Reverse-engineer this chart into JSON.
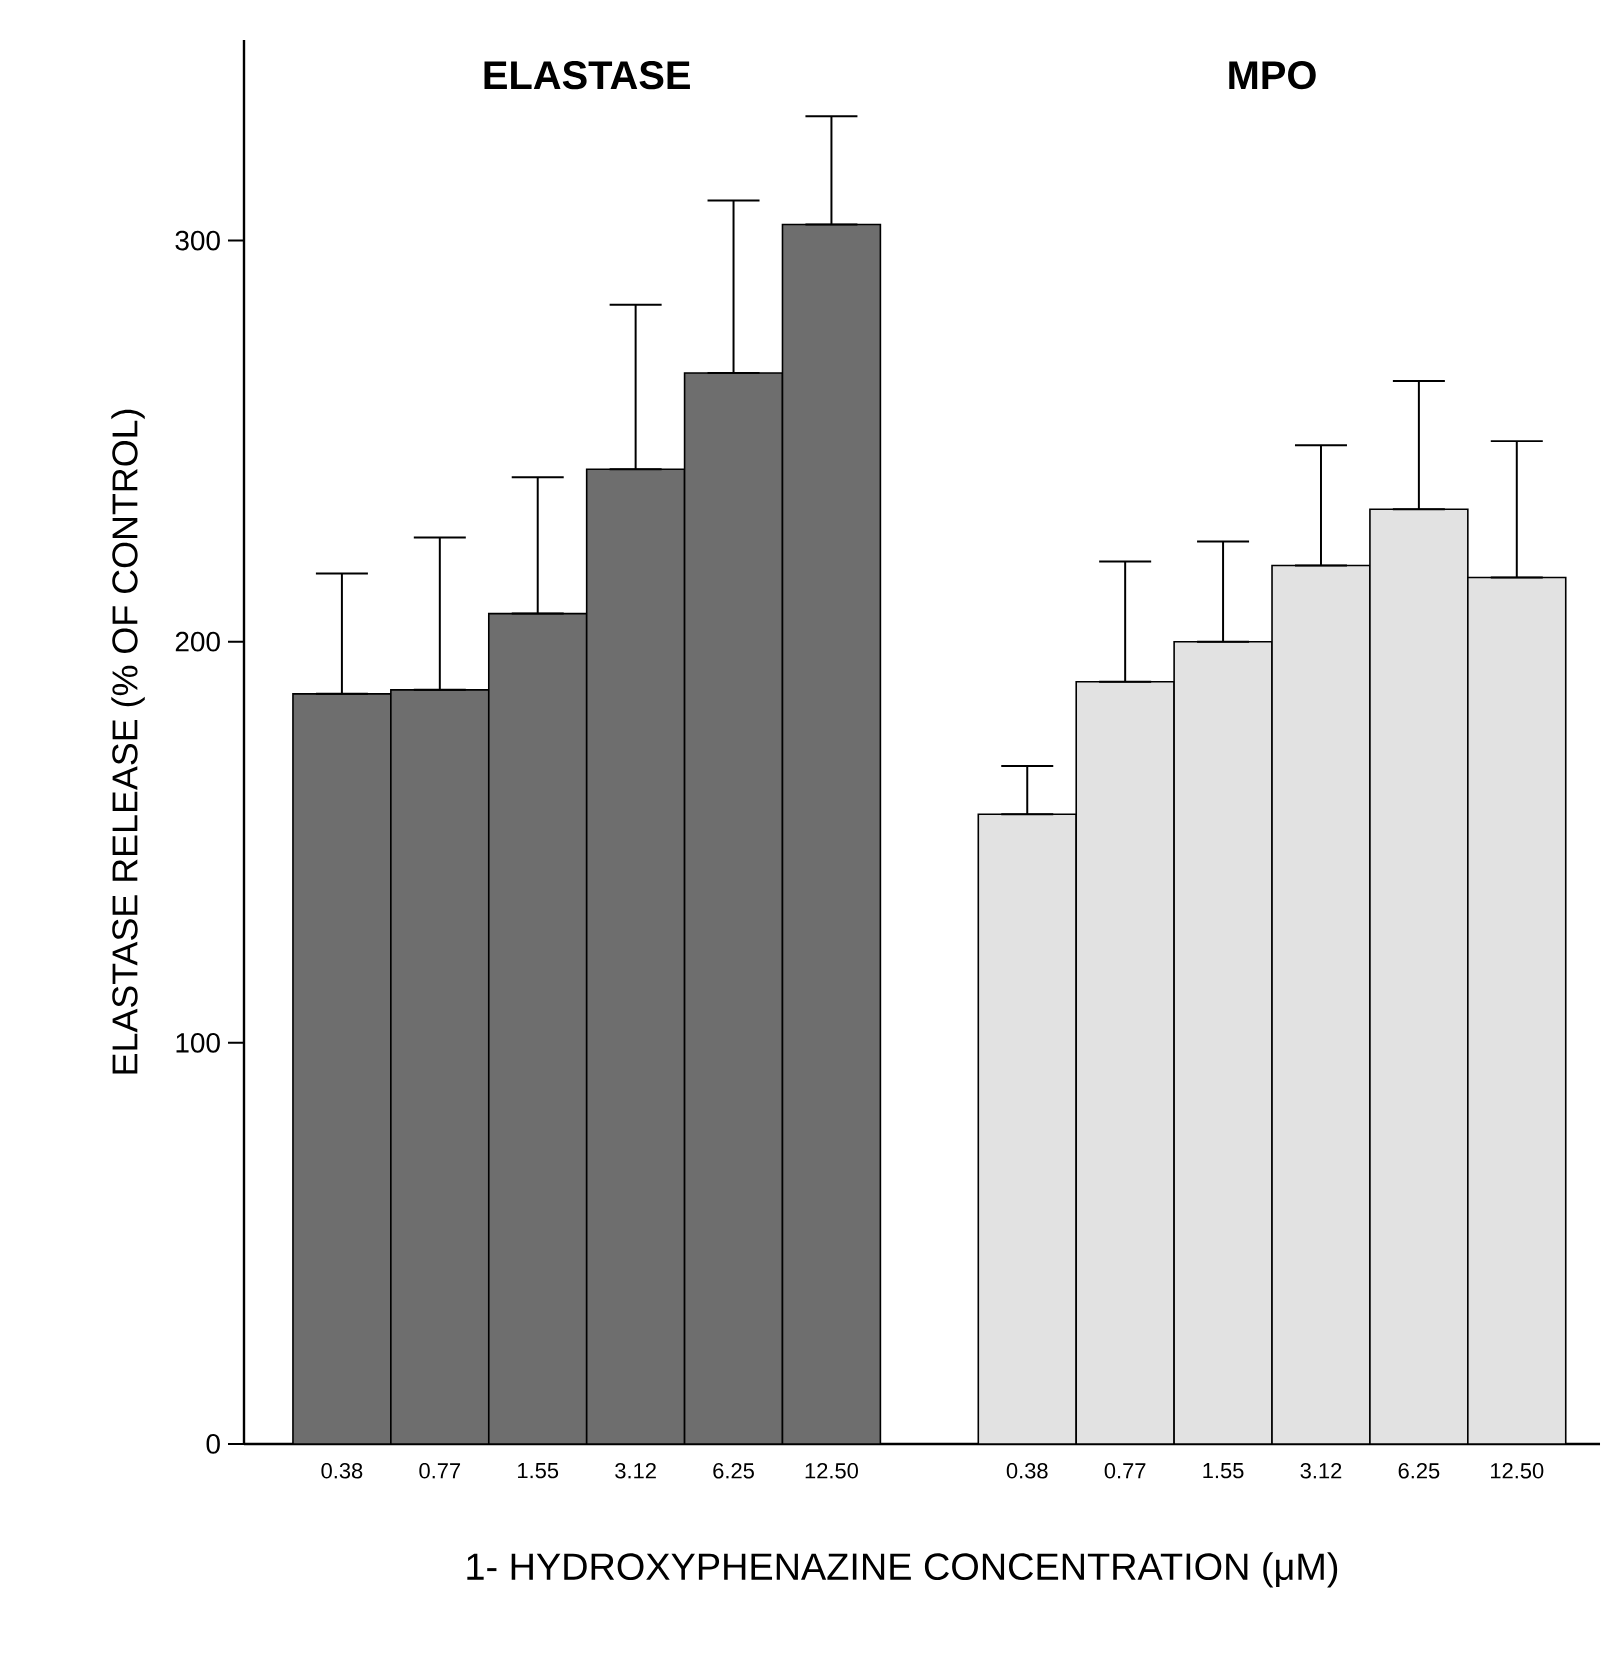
{
  "chart_data": {
    "type": "bar",
    "ylabel": "ELASTASE RELEASE (% OF CONTROL)",
    "xlabel": "1- HYDROXYPHENAZINE CONCENTRATION (μM)",
    "categories": [
      "0.38",
      "0.77",
      "1.55",
      "3.12",
      "6.25",
      "12.50",
      null,
      "0.38",
      "0.77",
      "1.55",
      "3.12",
      "6.25",
      "12.50"
    ],
    "series": [
      {
        "color": "#6e6e6e",
        "values": [
          187,
          188,
          207,
          243,
          267,
          304,
          null,
          null,
          null,
          null,
          null,
          null,
          null
        ],
        "errors": [
          [
            187,
            217
          ],
          [
            188,
            226
          ],
          [
            207,
            241
          ],
          [
            243,
            284
          ],
          [
            267,
            310
          ],
          [
            304,
            331
          ],
          null,
          null,
          null,
          null,
          null,
          null,
          null
        ]
      },
      {
        "color": "#e2e2e2",
        "values": [
          null,
          null,
          null,
          null,
          null,
          null,
          null,
          157,
          190,
          200,
          219,
          233,
          216
        ],
        "errors": [
          null,
          null,
          null,
          null,
          null,
          null,
          null,
          [
            157,
            169
          ],
          [
            190,
            220
          ],
          [
            200,
            225
          ],
          [
            219,
            249
          ],
          [
            233,
            265
          ],
          [
            216,
            250
          ]
        ]
      }
    ],
    "annotations": [
      "ELASTASE",
      "MPO"
    ],
    "ylim": [
      0,
      350
    ],
    "yticks": [
      0,
      100,
      200,
      300
    ]
  }
}
